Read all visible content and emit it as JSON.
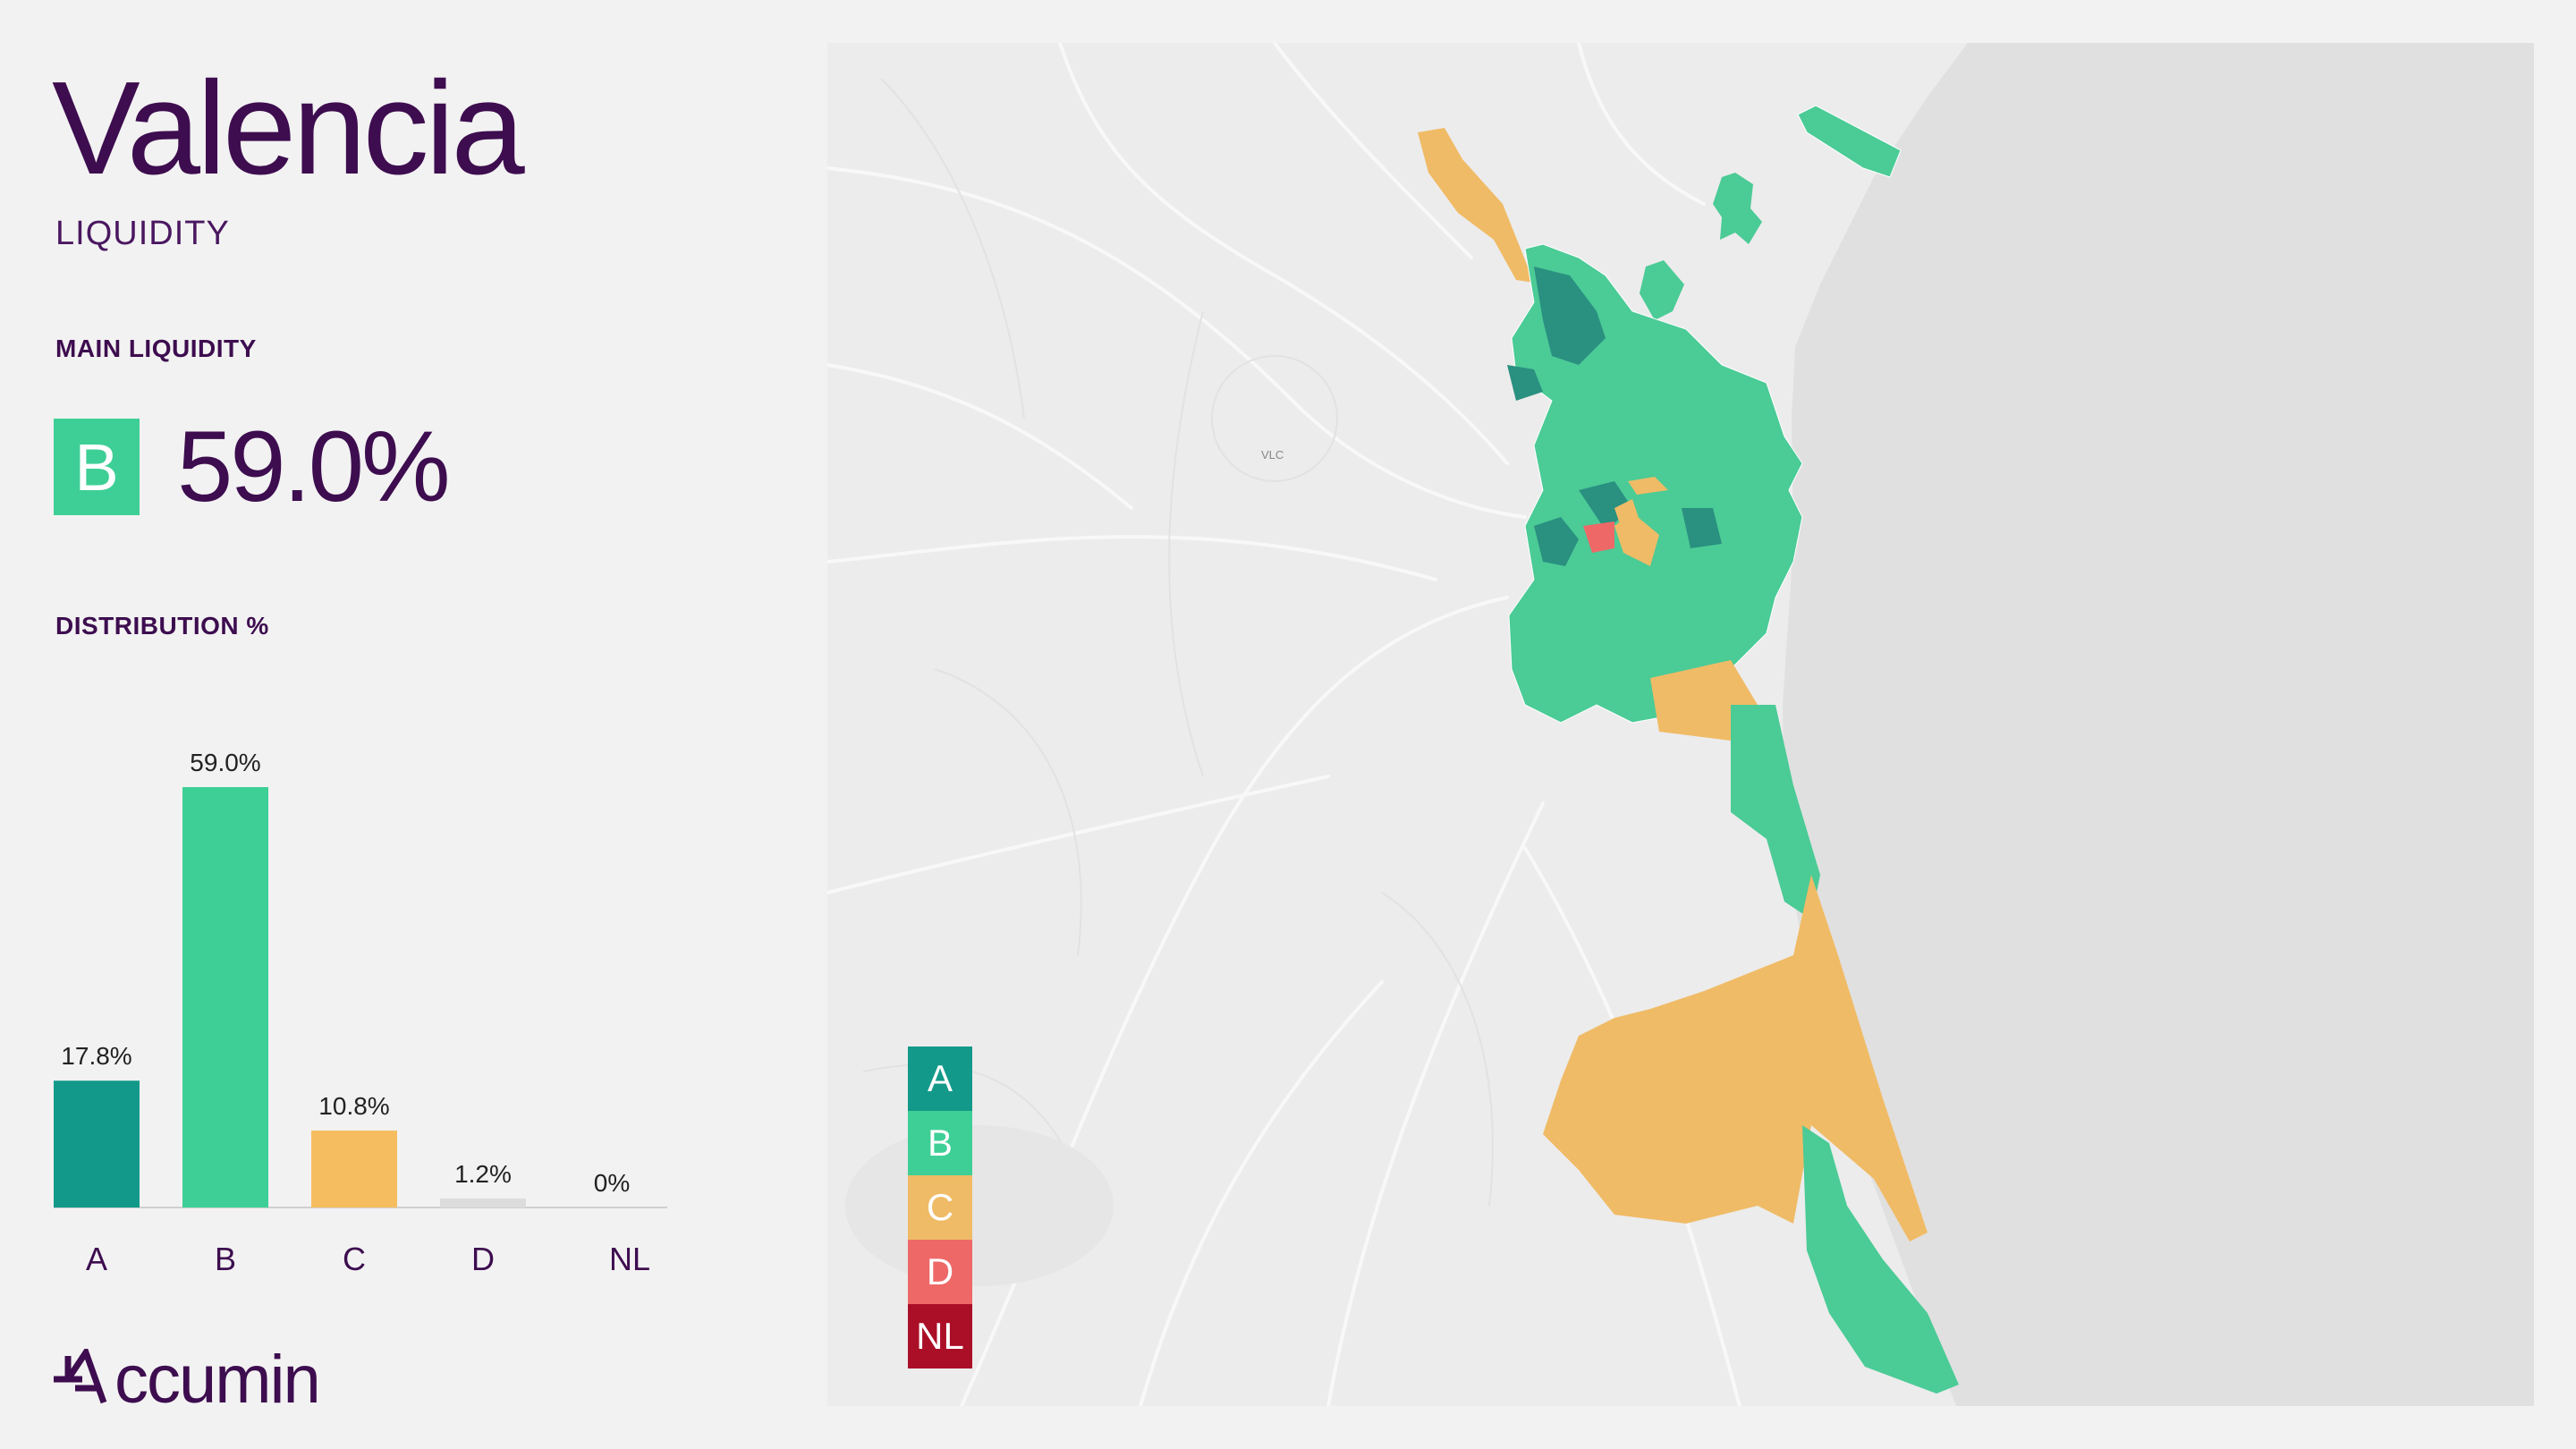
{
  "header": {
    "city": "Valencia",
    "subtitle": "LIQUIDITY"
  },
  "main_liquidity": {
    "label": "MAIN LIQUIDITY",
    "grade": "B",
    "value": "59.0%",
    "color": "#3ecf96"
  },
  "distribution_label": "DISTRIBUTION %",
  "chart_data": {
    "type": "bar",
    "categories": [
      "A",
      "B",
      "C",
      "D",
      "NL"
    ],
    "values": [
      17.8,
      59.0,
      10.8,
      1.2,
      0
    ],
    "value_labels": [
      "17.8%",
      "59.0%",
      "10.8%",
      "1.2%",
      "0%"
    ],
    "colors": [
      "#13998a",
      "#3ecf96",
      "#f6bd60",
      "#dcdcdc",
      "#dcdcdc"
    ],
    "title": "",
    "xlabel": "",
    "ylabel": "",
    "ylim": [
      0,
      59
    ],
    "grid": false
  },
  "legend": [
    {
      "label": "A",
      "color": "#13998a"
    },
    {
      "label": "B",
      "color": "#3ecf96"
    },
    {
      "label": "C",
      "color": "#f0bb66"
    },
    {
      "label": "D",
      "color": "#ee6868"
    },
    {
      "label": "NL",
      "color": "#ab0e27"
    }
  ],
  "map": {
    "place_label": "VLC",
    "sea_color": "#e0e0e0",
    "land_color": "#ececec"
  },
  "logo": {
    "text": "ccumin"
  }
}
